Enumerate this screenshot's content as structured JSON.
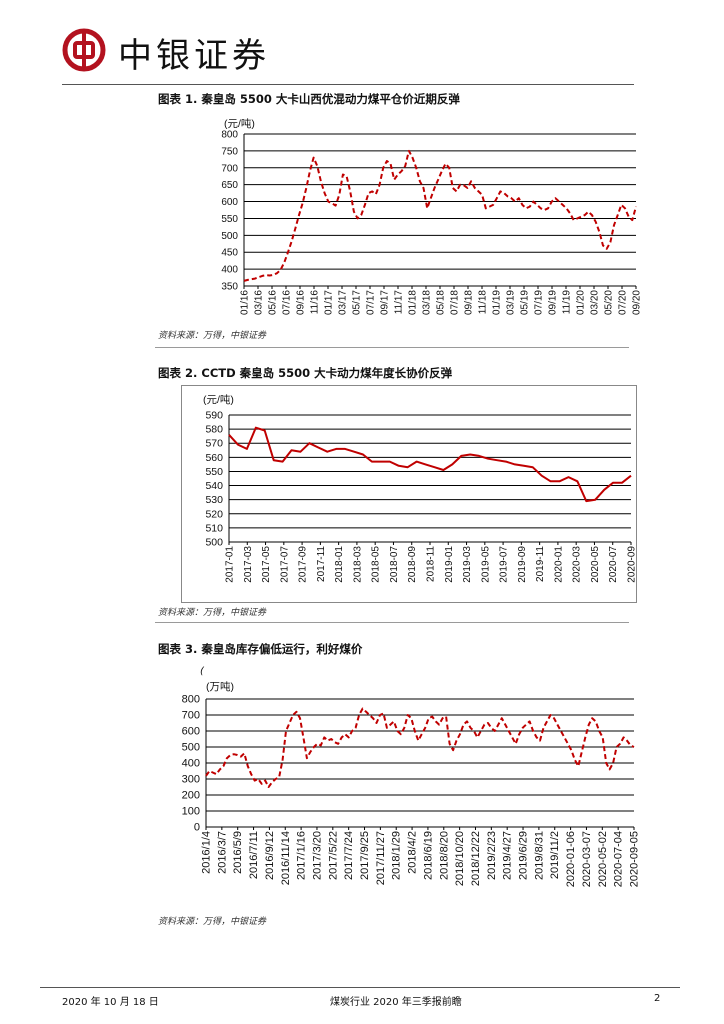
{
  "header": {
    "brand": "中银证券"
  },
  "figures": [
    {
      "title": "图表 1. 秦皇岛 5500 大卡山西优混动力煤平仓价近期反弹",
      "unit": "(元/吨)",
      "source": "资料来源：万得，中银证券"
    },
    {
      "title": "图表 2. CCTD 秦皇岛 5500 大卡动力煤年度长协价反弹",
      "unit": "(元/吨)",
      "source": "资料来源：万得，中银证券"
    },
    {
      "title": "图表 3. 秦皇岛库存偏低运行，利好煤价",
      "stray_mark": "(",
      "unit": "(万吨)",
      "source": "资料来源：万得，中银证券"
    }
  ],
  "footer": {
    "date": "2020 年 10 月 18 日",
    "report": "煤炭行业 2020 年三季报前瞻",
    "page": "2"
  },
  "chart_data": [
    {
      "type": "line",
      "color": "#c00000",
      "line_style": "dashed",
      "ylim": [
        350,
        800
      ],
      "yticks": [
        350,
        400,
        450,
        500,
        550,
        600,
        650,
        700,
        750,
        800
      ],
      "grid": true,
      "x_tick_labels": [
        "01/16",
        "03/16",
        "05/16",
        "07/16",
        "09/16",
        "11/16",
        "01/17",
        "03/17",
        "05/17",
        "07/17",
        "09/17",
        "11/17",
        "01/18",
        "03/18",
        "05/18",
        "07/18",
        "09/18",
        "11/18",
        "01/19",
        "03/19",
        "05/19",
        "07/19",
        "09/19",
        "11/19",
        "01/20",
        "03/20",
        "05/20",
        "07/20",
        "09/20"
      ],
      "values": [
        365,
        368,
        370,
        372,
        376,
        380,
        382,
        381,
        383,
        388,
        398,
        420,
        450,
        482,
        520,
        560,
        595,
        640,
        690,
        730,
        705,
        660,
        625,
        600,
        595,
        588,
        620,
        680,
        675,
        630,
        570,
        550,
        560,
        590,
        625,
        630,
        622,
        650,
        700,
        720,
        712,
        665,
        680,
        690,
        705,
        750,
        730,
        700,
        660,
        640,
        580,
        610,
        640,
        665,
        690,
        712,
        700,
        640,
        630,
        650,
        648,
        640,
        660,
        640,
        630,
        620,
        580,
        585,
        590,
        610,
        630,
        625,
        615,
        610,
        600,
        610,
        590,
        580,
        585,
        600,
        590,
        580,
        575,
        580,
        600,
        610,
        600,
        590,
        580,
        565,
        545,
        550,
        555,
        560,
        570,
        560,
        540,
        510,
        470,
        460,
        480,
        530,
        560,
        590,
        580,
        555,
        545,
        585
      ]
    },
    {
      "type": "line",
      "color": "#c00000",
      "line_style": "solid",
      "ylim": [
        500,
        590
      ],
      "yticks": [
        500,
        510,
        520,
        530,
        540,
        550,
        560,
        570,
        580,
        590
      ],
      "grid": true,
      "x_tick_labels": [
        "2017-01",
        "2017-03",
        "2017-05",
        "2017-07",
        "2017-09",
        "2017-11",
        "2018-01",
        "2018-03",
        "2018-05",
        "2018-07",
        "2018-09",
        "2018-11",
        "2019-01",
        "2019-03",
        "2019-05",
        "2019-07",
        "2019-09",
        "2019-11",
        "2020-01",
        "2020-03",
        "2020-05",
        "2020-07",
        "2020-09"
      ],
      "values": [
        576,
        569,
        566,
        581,
        579,
        558,
        557,
        565,
        564,
        570,
        567,
        564,
        566,
        566,
        564,
        562,
        557,
        557,
        557,
        554,
        553,
        557,
        555,
        553,
        551,
        555,
        561,
        562,
        561,
        559,
        558,
        557,
        555,
        554,
        553,
        547,
        543,
        543,
        546,
        543,
        529,
        530,
        537,
        542,
        542,
        547
      ]
    },
    {
      "type": "line",
      "color": "#c00000",
      "line_style": "dashed",
      "ylim": [
        0,
        800
      ],
      "yticks": [
        0,
        100,
        200,
        300,
        400,
        500,
        600,
        700,
        800
      ],
      "grid": true,
      "x_tick_labels": [
        "2016/1/4",
        "2016/3/7",
        "2016/5/9",
        "2016/7/11",
        "2016/9/12",
        "2016/11/14",
        "2017/1/16",
        "2017/3/20",
        "2017/5/22",
        "2017/7/24",
        "2017/9/25",
        "2017/11/27",
        "2018/1/29",
        "2018/4/2",
        "2018/6/19",
        "2018/8/20",
        "2018/10/20",
        "2018/12/22",
        "2019/2/23",
        "2019/4/27",
        "2019/6/29",
        "2019/8/31",
        "2019/11/2",
        "2020-01-06",
        "2020-03-07",
        "2020-05-02",
        "2020-07-04",
        "2020-09-05"
      ],
      "values": [
        320,
        350,
        340,
        330,
        360,
        380,
        430,
        450,
        455,
        450,
        440,
        460,
        380,
        330,
        290,
        300,
        270,
        290,
        250,
        280,
        300,
        310,
        420,
        600,
        650,
        700,
        720,
        680,
        560,
        430,
        470,
        500,
        520,
        510,
        560,
        540,
        550,
        530,
        520,
        560,
        580,
        560,
        600,
        620,
        700,
        740,
        720,
        700,
        680,
        650,
        700,
        710,
        620,
        640,
        660,
        600,
        580,
        620,
        700,
        680,
        600,
        540,
        580,
        620,
        680,
        690,
        660,
        640,
        680,
        690,
        520,
        480,
        540,
        580,
        640,
        660,
        620,
        600,
        560,
        600,
        640,
        650,
        620,
        600,
        640,
        680,
        640,
        600,
        560,
        520,
        580,
        620,
        640,
        660,
        600,
        560,
        540,
        620,
        660,
        700,
        680,
        640,
        600,
        560,
        520,
        480,
        420,
        380,
        470,
        560,
        640,
        680,
        660,
        600,
        560,
        400,
        360,
        400,
        500,
        520,
        560,
        540,
        510,
        500
      ]
    }
  ]
}
